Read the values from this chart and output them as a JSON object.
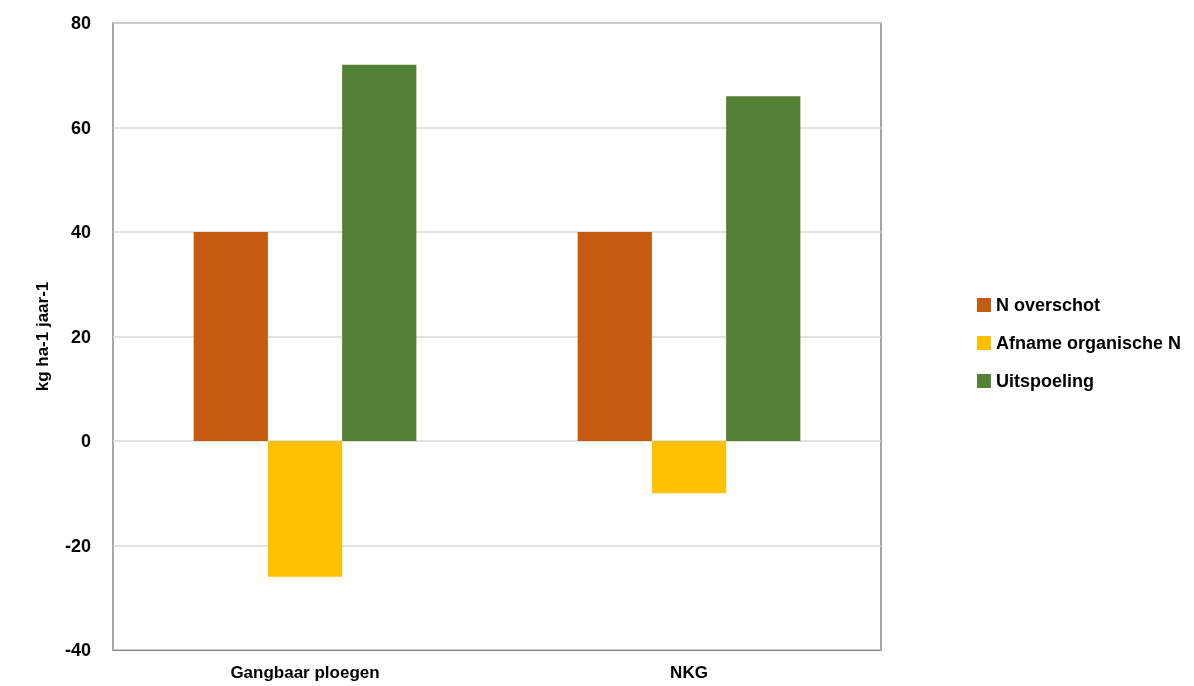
{
  "chart_data": {
    "type": "bar",
    "ylabel": "kg ha-1 jaar-1",
    "categories": [
      "Gangbaar ploegen",
      "NKG"
    ],
    "series": [
      {
        "name": "N overschot",
        "color": "#c55a11",
        "values": [
          40,
          40
        ]
      },
      {
        "name": "Afname organische N",
        "color": "#ffc000",
        "values": [
          -26,
          -10
        ]
      },
      {
        "name": "Uitspoeling",
        "color": "#538135",
        "values": [
          72,
          66
        ]
      }
    ],
    "ylim": [
      -40,
      80
    ],
    "yticks": [
      -40,
      -20,
      0,
      20,
      40,
      60,
      80
    ],
    "grid": "y",
    "legend": "right"
  }
}
